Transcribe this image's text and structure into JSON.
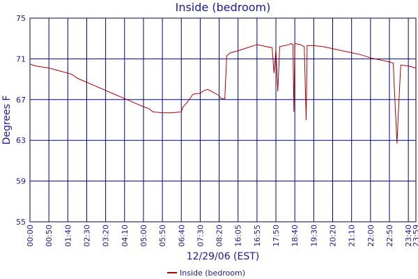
{
  "chart_data": {
    "type": "line",
    "title": "Inside (bedroom)",
    "x_label": "12/29/06 (EST)",
    "y_label": "Degrees F",
    "x": [
      0,
      3,
      10,
      18,
      22,
      25,
      30,
      35,
      40,
      45,
      50,
      55,
      60,
      63,
      65,
      70,
      75,
      80,
      81,
      83,
      86,
      88,
      90,
      92,
      94,
      97,
      100,
      101,
      103,
      104,
      106,
      110,
      115,
      120,
      125,
      128,
      129,
      130,
      131,
      132,
      137,
      138,
      139,
      139.5,
      140,
      143,
      145,
      146,
      146.5,
      150,
      155,
      160,
      165,
      170,
      175,
      180,
      185,
      190,
      192,
      193,
      194,
      195,
      196,
      200,
      204
    ],
    "series": [
      {
        "name": "Inside (bedroom)",
        "color": "#aa0000",
        "values": [
          70.5,
          70.3,
          70.1,
          69.7,
          69.5,
          69.1,
          68.7,
          68.3,
          67.9,
          67.5,
          67.1,
          66.7,
          66.3,
          66.1,
          65.8,
          65.7,
          65.7,
          65.8,
          66.3,
          66.7,
          67.5,
          67.6,
          67.6,
          67.9,
          68.0,
          67.7,
          67.4,
          67.1,
          67.1,
          71.3,
          71.6,
          71.8,
          72.1,
          72.4,
          72.2,
          72.1,
          69.6,
          71.9,
          67.8,
          72.2,
          72.4,
          72.5,
          72.4,
          65.8,
          72.5,
          72.4,
          72.2,
          65.0,
          72.3,
          72.3,
          72.2,
          72.0,
          71.8,
          71.6,
          71.4,
          71.1,
          70.9,
          70.7,
          70.6,
          66.5,
          62.7,
          66.8,
          70.4,
          70.3,
          70.1
        ]
      }
    ],
    "xlim": [
      0,
      204
    ],
    "xticks": [
      {
        "value": 0,
        "label": "00:00"
      },
      {
        "value": 10,
        "label": "00:50"
      },
      {
        "value": 20,
        "label": "01:40"
      },
      {
        "value": 30,
        "label": "02:30"
      },
      {
        "value": 40,
        "label": "03:20"
      },
      {
        "value": 50,
        "label": "04:10"
      },
      {
        "value": 60,
        "label": "05:00"
      },
      {
        "value": 70,
        "label": "05:50"
      },
      {
        "value": 80,
        "label": "06:40"
      },
      {
        "value": 90,
        "label": "07:30"
      },
      {
        "value": 100,
        "label": "08:20"
      },
      {
        "value": 110,
        "label": "16:05"
      },
      {
        "value": 120,
        "label": "16:55"
      },
      {
        "value": 130,
        "label": "17:50"
      },
      {
        "value": 140,
        "label": "18:40"
      },
      {
        "value": 150,
        "label": "19:30"
      },
      {
        "value": 160,
        "label": "20:20"
      },
      {
        "value": 170,
        "label": "21:10"
      },
      {
        "value": 180,
        "label": "22:00"
      },
      {
        "value": 190,
        "label": "22:50"
      },
      {
        "value": 200,
        "label": "23:40"
      },
      {
        "value": 204,
        "label": "23:59"
      }
    ],
    "ylim": [
      55,
      75
    ],
    "yticks": [
      55,
      59,
      63,
      67,
      71,
      75
    ],
    "grid": true
  }
}
